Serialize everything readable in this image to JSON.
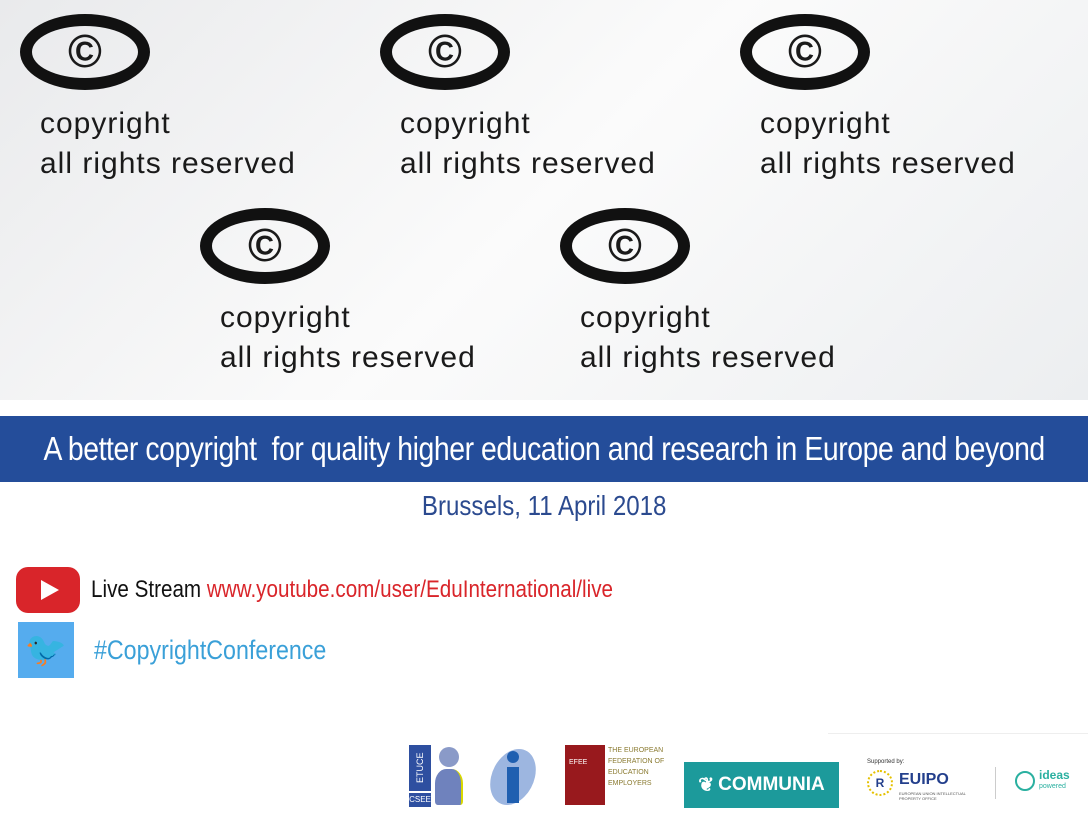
{
  "hero": {
    "tiles": [
      {
        "t1": "copyright",
        "t2": "all rights reserved",
        "sym": "©"
      }
    ]
  },
  "banner": {
    "title": "A better copyright  for quality higher education and research in Europe and beyond"
  },
  "event": {
    "date": "Brussels, 11 April 2018"
  },
  "links": {
    "livestream_label": "Live Stream",
    "livestream_url": "www.youtube.com/user/EduInternational/live",
    "hashtag": "#CopyrightConference"
  },
  "logos": {
    "etuce_top": "ETUCE",
    "etuce_bottom": "CSEE",
    "efee_short": "EFEE",
    "efee_full": "THE EUROPEAN FEDERATION OF EDUCATION EMPLOYERS",
    "communia": "COMMUNIA",
    "supported_by": "Supported by:",
    "euipo": "EUIPO",
    "euipo_sub": "EUROPEAN UNION INTELLECTUAL PROPERTY OFFICE",
    "ideas": "ideas",
    "ideas_sub": "powered"
  },
  "colors": {
    "banner": "#244d9a",
    "date": "#2b4a8f",
    "url": "#d9252a",
    "hashtag": "#3aa0d8",
    "youtube": "#d9252a",
    "twitter": "#55acee",
    "communia": "#1c9a9b",
    "efee": "#98191d"
  }
}
